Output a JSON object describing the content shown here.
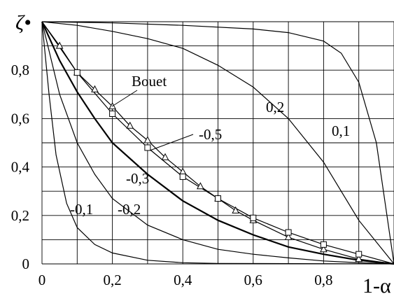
{
  "chart_data": {
    "type": "line",
    "ylabel": "ζ•",
    "xlabel": "1-α",
    "xlim": [
      0,
      1
    ],
    "ylim": [
      0,
      1
    ],
    "x_ticks": [
      "0",
      "0,2",
      "0,4",
      "0,6",
      "0,8"
    ],
    "y_ticks": [
      "0",
      "0,2",
      "0,4",
      "0,6",
      "0,8"
    ],
    "grid": true,
    "series": [
      {
        "name": "0,1",
        "points": [
          [
            0,
            1
          ],
          [
            0.2,
            0.995
          ],
          [
            0.4,
            0.985
          ],
          [
            0.6,
            0.97
          ],
          [
            0.7,
            0.955
          ],
          [
            0.8,
            0.92
          ],
          [
            0.85,
            0.87
          ],
          [
            0.9,
            0.75
          ],
          [
            0.95,
            0.5
          ],
          [
            1,
            0
          ]
        ]
      },
      {
        "name": "0,2",
        "points": [
          [
            0,
            1
          ],
          [
            0.1,
            0.985
          ],
          [
            0.2,
            0.96
          ],
          [
            0.3,
            0.93
          ],
          [
            0.4,
            0.89
          ],
          [
            0.5,
            0.82
          ],
          [
            0.6,
            0.73
          ],
          [
            0.7,
            0.6
          ],
          [
            0.8,
            0.42
          ],
          [
            0.9,
            0.18
          ],
          [
            1,
            0
          ]
        ]
      },
      {
        "name": "Bouet",
        "marker": "triangle",
        "points": [
          [
            0,
            1
          ],
          [
            0.05,
            0.9
          ],
          [
            0.1,
            0.79
          ],
          [
            0.15,
            0.72
          ],
          [
            0.2,
            0.65
          ],
          [
            0.25,
            0.57
          ],
          [
            0.3,
            0.51
          ],
          [
            0.35,
            0.44
          ],
          [
            0.4,
            0.38
          ],
          [
            0.45,
            0.32
          ],
          [
            0.5,
            0.27
          ],
          [
            0.55,
            0.22
          ],
          [
            0.6,
            0.18
          ],
          [
            0.7,
            0.11
          ],
          [
            0.8,
            0.06
          ],
          [
            0.9,
            0.02
          ],
          [
            1,
            0
          ]
        ]
      },
      {
        "name": "-0,5",
        "marker": "square",
        "points": [
          [
            0,
            1
          ],
          [
            0.1,
            0.79
          ],
          [
            0.2,
            0.62
          ],
          [
            0.3,
            0.48
          ],
          [
            0.4,
            0.36
          ],
          [
            0.5,
            0.27
          ],
          [
            0.6,
            0.19
          ],
          [
            0.7,
            0.13
          ],
          [
            0.8,
            0.08
          ],
          [
            0.9,
            0.04
          ],
          [
            1,
            0
          ]
        ]
      },
      {
        "name": "-0,3",
        "points": [
          [
            0,
            1
          ],
          [
            0.05,
            0.84
          ],
          [
            0.1,
            0.71
          ],
          [
            0.15,
            0.6
          ],
          [
            0.2,
            0.5
          ],
          [
            0.3,
            0.37
          ],
          [
            0.4,
            0.26
          ],
          [
            0.5,
            0.18
          ],
          [
            0.6,
            0.12
          ],
          [
            0.7,
            0.07
          ],
          [
            0.8,
            0.04
          ],
          [
            0.9,
            0.015
          ],
          [
            1,
            0
          ]
        ]
      },
      {
        "name": "-0,2",
        "points": [
          [
            0,
            1
          ],
          [
            0.05,
            0.7
          ],
          [
            0.1,
            0.5
          ],
          [
            0.15,
            0.37
          ],
          [
            0.2,
            0.27
          ],
          [
            0.3,
            0.16
          ],
          [
            0.4,
            0.1
          ],
          [
            0.5,
            0.06
          ],
          [
            0.6,
            0.04
          ],
          [
            0.7,
            0.025
          ],
          [
            0.8,
            0.012
          ],
          [
            0.9,
            0.005
          ],
          [
            1,
            0
          ]
        ]
      },
      {
        "name": "-0,1",
        "points": [
          [
            0,
            1
          ],
          [
            0.02,
            0.7
          ],
          [
            0.04,
            0.45
          ],
          [
            0.07,
            0.25
          ],
          [
            0.1,
            0.15
          ],
          [
            0.15,
            0.08
          ],
          [
            0.2,
            0.045
          ],
          [
            0.3,
            0.015
          ],
          [
            0.4,
            0.005
          ],
          [
            0.5,
            0.002
          ],
          [
            1,
            0
          ]
        ]
      }
    ]
  }
}
